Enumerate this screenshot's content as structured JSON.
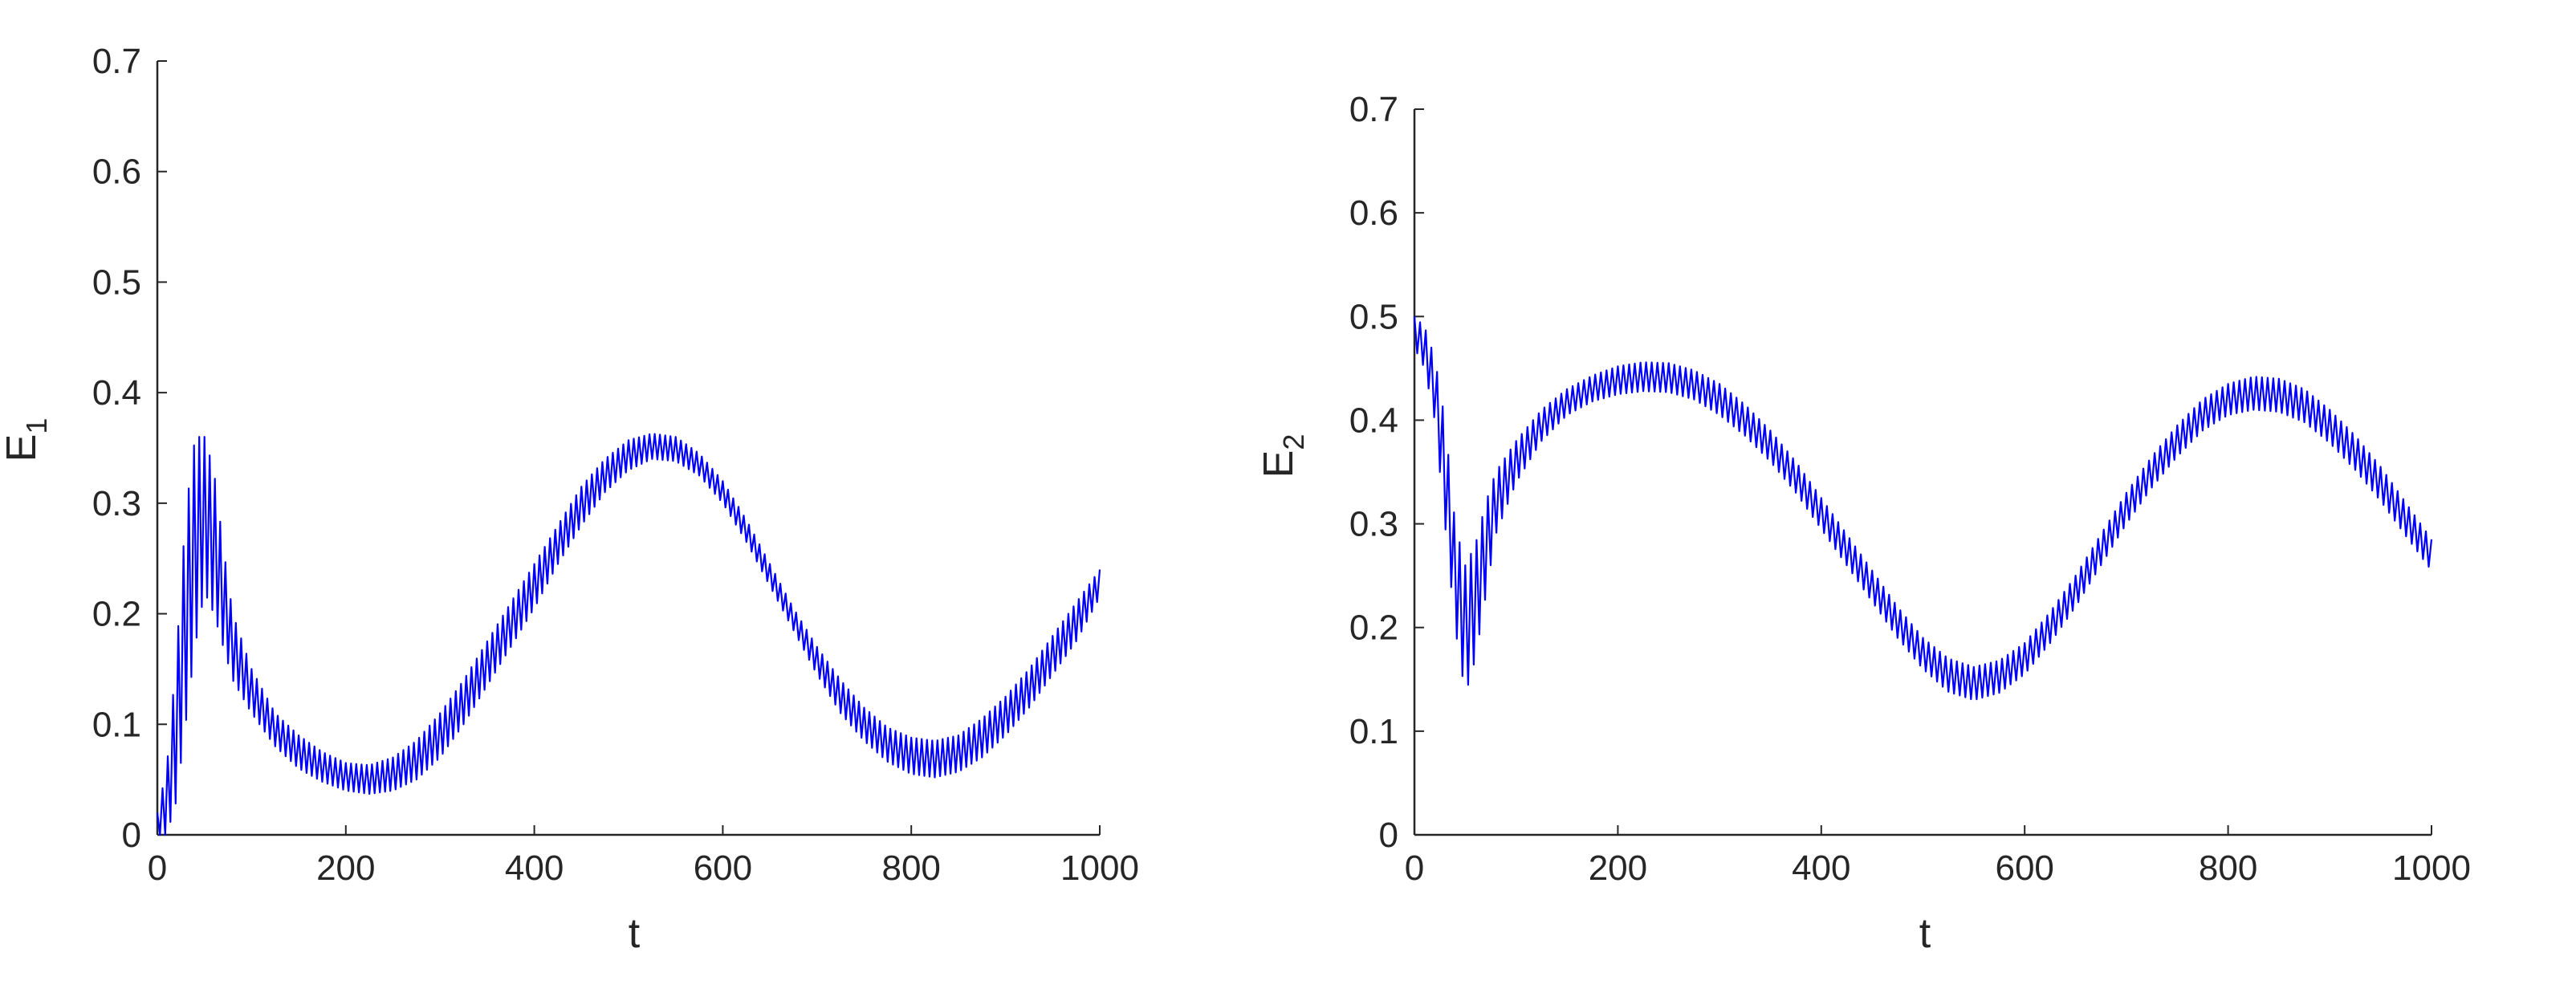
{
  "chart_data": [
    {
      "type": "line",
      "xlabel": "t",
      "ylabel": "E",
      "ylabel_subscript": "1",
      "xlim": [
        0,
        1000
      ],
      "ylim": [
        0,
        0.7
      ],
      "xticks": [
        "0",
        "200",
        "400",
        "600",
        "800",
        "1000"
      ],
      "yticks": [
        "0",
        "0.1",
        "0.2",
        "0.3",
        "0.4",
        "0.5",
        "0.6",
        "0.7"
      ],
      "grid": false,
      "line_color": "#0000ff",
      "series": [
        {
          "envelope_upper": [
            [
              0,
              0.02
            ],
            [
              10,
              0.06
            ],
            [
              20,
              0.16
            ],
            [
              30,
              0.29
            ],
            [
              40,
              0.36
            ],
            [
              50,
              0.36
            ],
            [
              60,
              0.33
            ],
            [
              70,
              0.26
            ],
            [
              80,
              0.2
            ],
            [
              100,
              0.15
            ],
            [
              125,
              0.11
            ],
            [
              150,
              0.09
            ],
            [
              175,
              0.075
            ],
            [
              200,
              0.065
            ],
            [
              225,
              0.063
            ],
            [
              250,
              0.07
            ],
            [
              275,
              0.085
            ],
            [
              300,
              0.11
            ],
            [
              325,
              0.14
            ],
            [
              350,
              0.175
            ],
            [
              375,
              0.21
            ],
            [
              400,
              0.245
            ],
            [
              425,
              0.28
            ],
            [
              450,
              0.315
            ],
            [
              475,
              0.34
            ],
            [
              500,
              0.357
            ],
            [
              525,
              0.363
            ],
            [
              550,
              0.36
            ],
            [
              575,
              0.345
            ],
            [
              600,
              0.32
            ],
            [
              625,
              0.285
            ],
            [
              650,
              0.245
            ],
            [
              675,
              0.205
            ],
            [
              700,
              0.17
            ],
            [
              725,
              0.14
            ],
            [
              750,
              0.115
            ],
            [
              775,
              0.097
            ],
            [
              800,
              0.088
            ],
            [
              825,
              0.085
            ],
            [
              850,
              0.09
            ],
            [
              875,
              0.105
            ],
            [
              900,
              0.125
            ],
            [
              925,
              0.15
            ],
            [
              950,
              0.18
            ],
            [
              975,
              0.21
            ],
            [
              1000,
              0.24
            ]
          ],
          "envelope_lower": [
            [
              0,
              0.0
            ],
            [
              10,
              0.0
            ],
            [
              20,
              0.03
            ],
            [
              30,
              0.1
            ],
            [
              40,
              0.17
            ],
            [
              50,
              0.22
            ],
            [
              60,
              0.2
            ],
            [
              70,
              0.17
            ],
            [
              80,
              0.14
            ],
            [
              100,
              0.11
            ],
            [
              125,
              0.08
            ],
            [
              150,
              0.06
            ],
            [
              175,
              0.048
            ],
            [
              200,
              0.04
            ],
            [
              225,
              0.037
            ],
            [
              250,
              0.04
            ],
            [
              275,
              0.05
            ],
            [
              300,
              0.07
            ],
            [
              325,
              0.1
            ],
            [
              350,
              0.135
            ],
            [
              375,
              0.17
            ],
            [
              400,
              0.205
            ],
            [
              425,
              0.245
            ],
            [
              450,
              0.28
            ],
            [
              475,
              0.31
            ],
            [
              500,
              0.33
            ],
            [
              525,
              0.34
            ],
            [
              550,
              0.338
            ],
            [
              575,
              0.325
            ],
            [
              600,
              0.3
            ],
            [
              625,
              0.265
            ],
            [
              650,
              0.225
            ],
            [
              675,
              0.185
            ],
            [
              700,
              0.145
            ],
            [
              725,
              0.11
            ],
            [
              750,
              0.085
            ],
            [
              775,
              0.066
            ],
            [
              800,
              0.055
            ],
            [
              825,
              0.052
            ],
            [
              850,
              0.057
            ],
            [
              875,
              0.07
            ],
            [
              900,
              0.09
            ],
            [
              925,
              0.115
            ],
            [
              950,
              0.145
            ],
            [
              975,
              0.175
            ],
            [
              1000,
              0.215
            ]
          ]
        }
      ]
    },
    {
      "type": "line",
      "xlabel": "t",
      "ylabel": "E",
      "ylabel_subscript": "2",
      "xlim": [
        0,
        1000
      ],
      "ylim": [
        0,
        0.7
      ],
      "xticks": [
        "0",
        "200",
        "400",
        "600",
        "800",
        "1000"
      ],
      "yticks": [
        "0",
        "0.1",
        "0.2",
        "0.3",
        "0.4",
        "0.5",
        "0.6",
        "0.7"
      ],
      "grid": false,
      "line_color": "#0000ff",
      "series": [
        {
          "envelope_upper": [
            [
              0,
              0.5
            ],
            [
              10,
              0.49
            ],
            [
              20,
              0.46
            ],
            [
              30,
              0.4
            ],
            [
              40,
              0.3
            ],
            [
              50,
              0.26
            ],
            [
              60,
              0.28
            ],
            [
              70,
              0.32
            ],
            [
              80,
              0.35
            ],
            [
              100,
              0.38
            ],
            [
              125,
              0.41
            ],
            [
              150,
              0.43
            ],
            [
              175,
              0.443
            ],
            [
              200,
              0.452
            ],
            [
              225,
              0.456
            ],
            [
              250,
              0.455
            ],
            [
              275,
              0.448
            ],
            [
              300,
              0.435
            ],
            [
              325,
              0.415
            ],
            [
              350,
              0.39
            ],
            [
              375,
              0.36
            ],
            [
              400,
              0.325
            ],
            [
              425,
              0.29
            ],
            [
              450,
              0.255
            ],
            [
              475,
              0.22
            ],
            [
              500,
              0.19
            ],
            [
              525,
              0.17
            ],
            [
              550,
              0.162
            ],
            [
              575,
              0.168
            ],
            [
              600,
              0.185
            ],
            [
              625,
              0.215
            ],
            [
              650,
              0.25
            ],
            [
              675,
              0.29
            ],
            [
              700,
              0.33
            ],
            [
              725,
              0.365
            ],
            [
              750,
              0.395
            ],
            [
              775,
              0.42
            ],
            [
              800,
              0.435
            ],
            [
              825,
              0.442
            ],
            [
              850,
              0.44
            ],
            [
              875,
              0.43
            ],
            [
              900,
              0.41
            ],
            [
              925,
              0.385
            ],
            [
              950,
              0.355
            ],
            [
              975,
              0.32
            ],
            [
              1000,
              0.285
            ]
          ],
          "envelope_lower": [
            [
              0,
              0.47
            ],
            [
              10,
              0.45
            ],
            [
              20,
              0.4
            ],
            [
              30,
              0.3
            ],
            [
              40,
              0.2
            ],
            [
              50,
              0.135
            ],
            [
              60,
              0.17
            ],
            [
              70,
              0.23
            ],
            [
              80,
              0.29
            ],
            [
              100,
              0.34
            ],
            [
              125,
              0.38
            ],
            [
              150,
              0.405
            ],
            [
              175,
              0.418
            ],
            [
              200,
              0.425
            ],
            [
              225,
              0.428
            ],
            [
              250,
              0.427
            ],
            [
              275,
              0.42
            ],
            [
              300,
              0.405
            ],
            [
              325,
              0.385
            ],
            [
              350,
              0.36
            ],
            [
              375,
              0.33
            ],
            [
              400,
              0.295
            ],
            [
              425,
              0.26
            ],
            [
              450,
              0.225
            ],
            [
              475,
              0.19
            ],
            [
              500,
              0.16
            ],
            [
              525,
              0.138
            ],
            [
              550,
              0.13
            ],
            [
              575,
              0.137
            ],
            [
              600,
              0.155
            ],
            [
              625,
              0.185
            ],
            [
              650,
              0.22
            ],
            [
              675,
              0.26
            ],
            [
              700,
              0.3
            ],
            [
              725,
              0.335
            ],
            [
              750,
              0.365
            ],
            [
              775,
              0.39
            ],
            [
              800,
              0.405
            ],
            [
              825,
              0.41
            ],
            [
              850,
              0.408
            ],
            [
              875,
              0.398
            ],
            [
              900,
              0.378
            ],
            [
              925,
              0.352
            ],
            [
              950,
              0.322
            ],
            [
              975,
              0.288
            ],
            [
              1000,
              0.255
            ]
          ]
        }
      ]
    }
  ]
}
